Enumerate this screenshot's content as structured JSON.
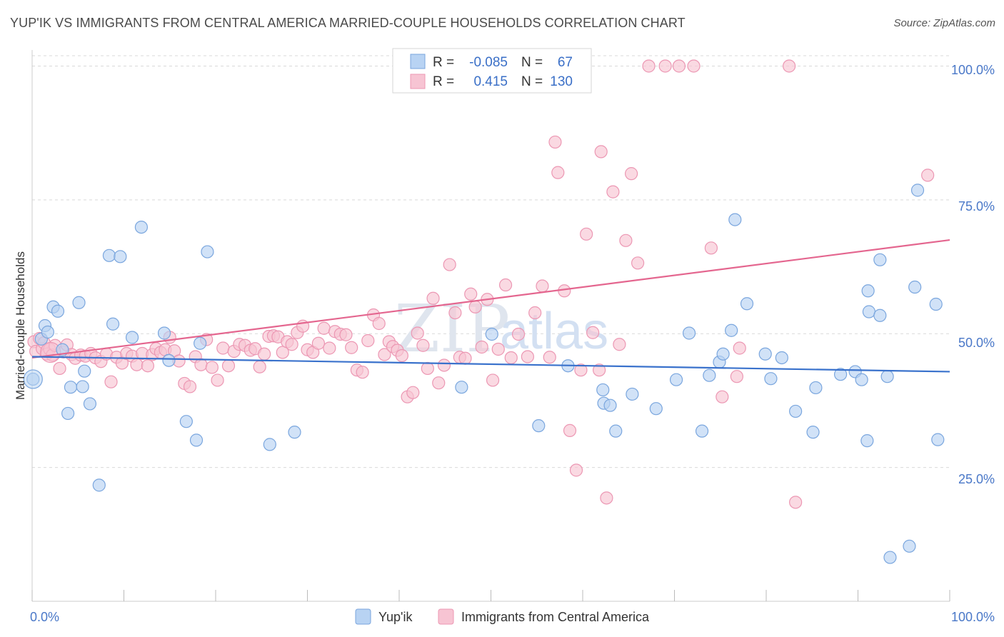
{
  "title": "YUP'IK VS IMMIGRANTS FROM CENTRAL AMERICA MARRIED-COUPLE HOUSEHOLDS CORRELATION CHART",
  "source": "Source: ZipAtlas.com",
  "watermark": {
    "zip": "ZIP",
    "atlas": "atlas"
  },
  "colors": {
    "blue_fill": "#b8d3f3",
    "blue_stroke": "#7aa6de",
    "blue_line": "#3a72cc",
    "pink_fill": "#f7c4d3",
    "pink_stroke": "#ec97b3",
    "pink_line": "#e4668f",
    "tick": "#4a78c8",
    "grid": "#d9d9d9"
  },
  "legend": {
    "r_label": "R =",
    "n_label": "N =",
    "rows": [
      {
        "r": "-0.085",
        "n": "67"
      },
      {
        "r": "0.415",
        "n": "130"
      }
    ]
  },
  "chart_data": {
    "type": "scatter",
    "title": "YUP'IK VS IMMIGRANTS FROM CENTRAL AMERICA MARRIED-COUPLE HOUSEHOLDS CORRELATION CHART",
    "xlabel": "",
    "ylabel": "Married-couple Households",
    "xlim": [
      0,
      100
    ],
    "ylim": [
      0,
      103
    ],
    "x_tick_labels": [
      "0.0%",
      "100.0%"
    ],
    "y_tick_labels": [
      "25.0%",
      "50.0%",
      "75.0%",
      "100.0%"
    ],
    "y_ticks": [
      25,
      50,
      75,
      100
    ],
    "grid": true,
    "legend_position": "top-center",
    "series": [
      {
        "name": "Yup'ik",
        "r": -0.085,
        "n": 67,
        "trend": [
          [
            0,
            45.7
          ],
          [
            100,
            42.9
          ]
        ],
        "points": [
          [
            0.1,
            41.5
          ],
          [
            1.0,
            49.0
          ],
          [
            1.4,
            51.5
          ],
          [
            1.7,
            50.3
          ],
          [
            2.3,
            55.0
          ],
          [
            2.8,
            54.2
          ],
          [
            3.3,
            47.0
          ],
          [
            3.9,
            35.1
          ],
          [
            4.2,
            40.0
          ],
          [
            5.1,
            55.8
          ],
          [
            5.5,
            40.1
          ],
          [
            5.7,
            43.0
          ],
          [
            6.3,
            36.9
          ],
          [
            7.3,
            21.7
          ],
          [
            8.4,
            64.6
          ],
          [
            8.8,
            51.8
          ],
          [
            9.6,
            64.4
          ],
          [
            10.9,
            49.3
          ],
          [
            11.9,
            69.9
          ],
          [
            14.4,
            50.1
          ],
          [
            14.9,
            45.0
          ],
          [
            16.8,
            33.6
          ],
          [
            17.9,
            30.1
          ],
          [
            18.3,
            48.2
          ],
          [
            19.1,
            65.3
          ],
          [
            25.9,
            29.3
          ],
          [
            28.6,
            31.6
          ],
          [
            46.8,
            40.0
          ],
          [
            50.1,
            49.9
          ],
          [
            55.2,
            32.8
          ],
          [
            58.4,
            44.0
          ],
          [
            62.2,
            39.5
          ],
          [
            62.3,
            37.0
          ],
          [
            63.0,
            36.6
          ],
          [
            63.6,
            31.8
          ],
          [
            65.4,
            38.7
          ],
          [
            68.0,
            36.0
          ],
          [
            70.2,
            41.4
          ],
          [
            71.6,
            50.1
          ],
          [
            73.0,
            31.8
          ],
          [
            73.8,
            42.2
          ],
          [
            74.9,
            44.7
          ],
          [
            75.3,
            46.2
          ],
          [
            76.2,
            50.6
          ],
          [
            76.6,
            71.3
          ],
          [
            77.9,
            55.6
          ],
          [
            79.9,
            46.2
          ],
          [
            80.5,
            41.6
          ],
          [
            81.7,
            45.5
          ],
          [
            83.2,
            35.5
          ],
          [
            85.1,
            31.6
          ],
          [
            85.4,
            39.9
          ],
          [
            88.1,
            42.4
          ],
          [
            89.7,
            42.9
          ],
          [
            90.4,
            41.4
          ],
          [
            91.0,
            30.0
          ],
          [
            91.1,
            58.0
          ],
          [
            91.2,
            54.1
          ],
          [
            92.4,
            63.8
          ],
          [
            92.4,
            53.4
          ],
          [
            93.2,
            42.0
          ],
          [
            93.5,
            8.2
          ],
          [
            95.6,
            10.3
          ],
          [
            96.2,
            58.7
          ],
          [
            96.5,
            76.8
          ],
          [
            98.5,
            55.5
          ],
          [
            98.7,
            30.2
          ]
        ]
      },
      {
        "name": "Immigrants from Central America",
        "r": 0.415,
        "n": 130,
        "trend": [
          [
            0,
            45.5
          ],
          [
            100,
            67.5
          ]
        ],
        "points": [
          [
            0.2,
            48.5
          ],
          [
            0.4,
            46.7
          ],
          [
            0.8,
            49.1
          ],
          [
            1.1,
            47.2
          ],
          [
            1.3,
            48.3
          ],
          [
            1.6,
            46.2
          ],
          [
            1.9,
            47.1
          ],
          [
            2.2,
            46.0
          ],
          [
            2.5,
            47.8
          ],
          [
            3.0,
            43.5
          ],
          [
            3.4,
            46.6
          ],
          [
            3.8,
            47.9
          ],
          [
            4.3,
            46.1
          ],
          [
            4.7,
            45.4
          ],
          [
            5.3,
            46.0
          ],
          [
            5.8,
            45.8
          ],
          [
            6.4,
            46.3
          ],
          [
            6.9,
            45.5
          ],
          [
            7.5,
            44.8
          ],
          [
            8.1,
            46.2
          ],
          [
            8.6,
            41.0
          ],
          [
            9.2,
            45.6
          ],
          [
            9.8,
            44.5
          ],
          [
            10.3,
            46.3
          ],
          [
            10.9,
            45.8
          ],
          [
            11.4,
            44.2
          ],
          [
            12.0,
            46.3
          ],
          [
            12.6,
            44.0
          ],
          [
            13.1,
            46.1
          ],
          [
            13.5,
            47.2
          ],
          [
            14.0,
            46.5
          ],
          [
            14.5,
            47.0
          ],
          [
            15.0,
            49.3
          ],
          [
            15.5,
            46.8
          ],
          [
            16.0,
            44.9
          ],
          [
            16.6,
            40.7
          ],
          [
            17.2,
            40.1
          ],
          [
            17.8,
            45.7
          ],
          [
            18.4,
            44.2
          ],
          [
            19.0,
            48.9
          ],
          [
            19.6,
            43.7
          ],
          [
            20.2,
            41.3
          ],
          [
            20.8,
            47.3
          ],
          [
            21.4,
            44.0
          ],
          [
            22.0,
            46.7
          ],
          [
            22.6,
            48.0
          ],
          [
            23.2,
            47.8
          ],
          [
            23.8,
            46.9
          ],
          [
            24.3,
            47.2
          ],
          [
            24.8,
            43.8
          ],
          [
            25.3,
            46.2
          ],
          [
            25.8,
            49.5
          ],
          [
            26.3,
            49.6
          ],
          [
            26.8,
            49.4
          ],
          [
            27.3,
            46.5
          ],
          [
            27.8,
            48.5
          ],
          [
            28.3,
            48.0
          ],
          [
            28.9,
            50.2
          ],
          [
            29.5,
            51.4
          ],
          [
            30.0,
            47.0
          ],
          [
            30.6,
            46.5
          ],
          [
            31.2,
            48.2
          ],
          [
            31.8,
            51.0
          ],
          [
            32.4,
            47.3
          ],
          [
            33.0,
            50.4
          ],
          [
            33.6,
            49.9
          ],
          [
            34.2,
            49.8
          ],
          [
            34.8,
            47.4
          ],
          [
            35.4,
            43.2
          ],
          [
            36.0,
            42.8
          ],
          [
            36.6,
            48.7
          ],
          [
            37.2,
            53.5
          ],
          [
            37.8,
            51.9
          ],
          [
            38.4,
            46.1
          ],
          [
            38.9,
            48.5
          ],
          [
            39.3,
            47.6
          ],
          [
            39.8,
            46.9
          ],
          [
            40.3,
            45.9
          ],
          [
            40.9,
            38.2
          ],
          [
            41.5,
            39.0
          ],
          [
            42.0,
            50.1
          ],
          [
            42.6,
            47.8
          ],
          [
            43.1,
            43.5
          ],
          [
            43.7,
            56.6
          ],
          [
            44.3,
            40.8
          ],
          [
            44.9,
            44.1
          ],
          [
            45.5,
            62.9
          ],
          [
            46.1,
            53.9
          ],
          [
            46.6,
            45.6
          ],
          [
            47.2,
            45.4
          ],
          [
            47.8,
            57.4
          ],
          [
            48.3,
            55.0
          ],
          [
            49.0,
            47.5
          ],
          [
            49.6,
            56.4
          ],
          [
            50.2,
            41.3
          ],
          [
            50.8,
            47.1
          ],
          [
            51.6,
            59.1
          ],
          [
            52.2,
            45.5
          ],
          [
            53.0,
            49.9
          ],
          [
            54.0,
            45.7
          ],
          [
            54.8,
            53.9
          ],
          [
            55.6,
            58.9
          ],
          [
            56.4,
            45.6
          ],
          [
            57.0,
            85.8
          ],
          [
            57.3,
            80.1
          ],
          [
            58.0,
            58.0
          ],
          [
            58.6,
            31.9
          ],
          [
            59.3,
            24.5
          ],
          [
            59.8,
            43.2
          ],
          [
            60.4,
            68.6
          ],
          [
            61.1,
            50.2
          ],
          [
            61.8,
            43.2
          ],
          [
            62.0,
            84.0
          ],
          [
            62.6,
            19.3
          ],
          [
            63.3,
            76.5
          ],
          [
            64.0,
            48.0
          ],
          [
            64.7,
            67.4
          ],
          [
            65.3,
            79.9
          ],
          [
            66.0,
            63.2
          ],
          [
            67.2,
            100.0
          ],
          [
            69.0,
            100.0
          ],
          [
            70.5,
            100.0
          ],
          [
            72.1,
            100.0
          ],
          [
            74.0,
            66.0
          ],
          [
            75.2,
            38.2
          ],
          [
            76.8,
            42.0
          ],
          [
            77.1,
            47.3
          ],
          [
            82.5,
            100.0
          ],
          [
            83.2,
            18.5
          ],
          [
            97.6,
            79.6
          ]
        ]
      }
    ]
  },
  "bottom_legend": [
    {
      "label": "Yup'ik"
    },
    {
      "label": "Immigrants from Central America"
    }
  ]
}
